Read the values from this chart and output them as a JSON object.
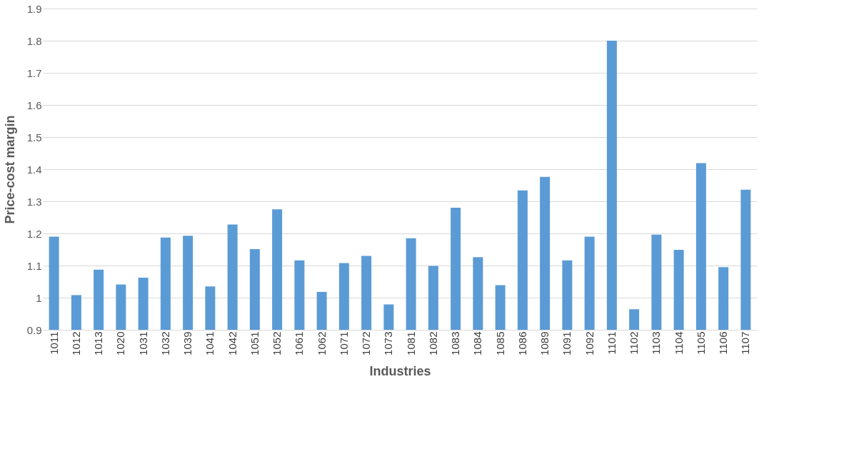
{
  "chart_data": {
    "type": "bar",
    "xlabel": "Industries",
    "ylabel": "Price-cost margin",
    "categories": [
      "1011",
      "1012",
      "1013",
      "1020",
      "1031",
      "1032",
      "1039",
      "1041",
      "1042",
      "1051",
      "1052",
      "1061",
      "1062",
      "1071",
      "1072",
      "1073",
      "1081",
      "1082",
      "1083",
      "1084",
      "1085",
      "1086",
      "1089",
      "1091",
      "1092",
      "1101",
      "1102",
      "1103",
      "1104",
      "1105",
      "1106",
      "1107"
    ],
    "values": [
      1.19,
      1.008,
      1.087,
      1.041,
      1.062,
      1.187,
      1.193,
      1.035,
      1.228,
      1.151,
      1.275,
      1.116,
      1.018,
      1.108,
      1.13,
      0.979,
      1.185,
      1.099,
      1.28,
      1.126,
      1.039,
      1.334,
      1.376,
      1.116,
      1.19,
      1.8,
      0.964,
      1.196,
      1.149,
      1.419,
      1.095,
      1.336
    ],
    "color": "#5b9bd5",
    "ylim": [
      0.9,
      1.9
    ],
    "yticks": [
      0.9,
      1,
      1.1,
      1.2,
      1.3,
      1.4,
      1.5,
      1.6,
      1.7,
      1.8,
      1.9
    ],
    "grid": "y"
  }
}
